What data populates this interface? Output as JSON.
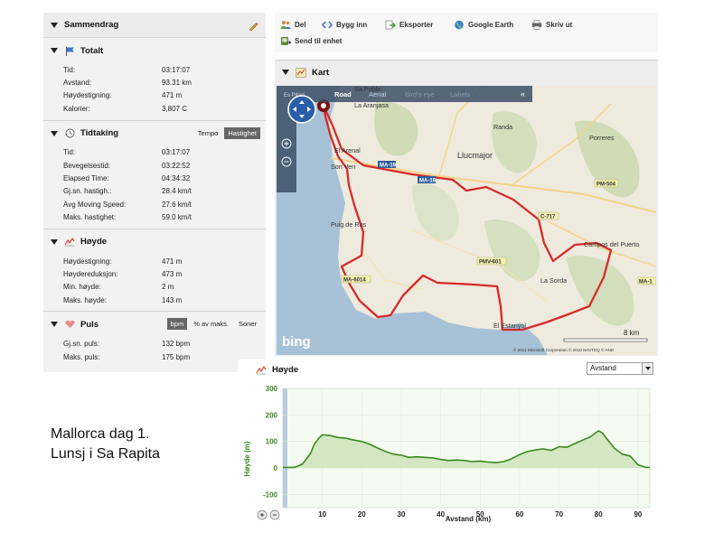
{
  "summary": {
    "title": "Sammendrag",
    "totalt": {
      "title": "Totalt",
      "rows": [
        {
          "label": "Tid:",
          "value": "03:17:07"
        },
        {
          "label": "Avstand:",
          "value": "93.31 km"
        },
        {
          "label": "Høydestigning:",
          "value": "471 m"
        },
        {
          "label": "Kalorier:",
          "value": "3,807 C"
        }
      ]
    },
    "tidtaking": {
      "title": "Tidtaking",
      "tabs": [
        "Tempo",
        "Hastighet"
      ],
      "active_tab": "Hastighet",
      "rows": [
        {
          "label": "Tid:",
          "value": "03:17:07"
        },
        {
          "label": "Bevegelsestid:",
          "value": "03:22:52"
        },
        {
          "label": "Elapsed Time:",
          "value": "04:34:32"
        },
        {
          "label": "Gj.sn. hastigh.:",
          "value": "28.4 km/t"
        },
        {
          "label": "Avg Moving Speed:",
          "value": "27.6 km/t"
        },
        {
          "label": "Maks. hastighet:",
          "value": "59.0 km/t"
        }
      ]
    },
    "hoyde": {
      "title": "Høyde",
      "rows": [
        {
          "label": "Høydestigning:",
          "value": "471 m"
        },
        {
          "label": "Høydereduksjon:",
          "value": "473 m"
        },
        {
          "label": "Min. høyde:",
          "value": "2 m"
        },
        {
          "label": "Maks. høyde:",
          "value": "143 m"
        }
      ]
    },
    "puls": {
      "title": "Puls",
      "tabs": [
        "bpm",
        "% av maks.",
        "Soner"
      ],
      "active_tab": "bpm",
      "rows": [
        {
          "label": "Gj.sn. puls:",
          "value": "132 bpm"
        },
        {
          "label": "Maks. puls:",
          "value": "175 bpm"
        }
      ]
    }
  },
  "toolbar": {
    "del": "Del",
    "bygg_inn": "Bygg inn",
    "eksporter": "Eksporter",
    "google_earth": "Google Earth",
    "skriv_ut": "Skriv ut",
    "send_til_enhet": "Send til enhet"
  },
  "map": {
    "title": "Kart",
    "modes": [
      "Road",
      "Aerial",
      "Bird's eye",
      "Labels"
    ],
    "active_mode": "Road",
    "collapse": "«",
    "places": [
      "Sa Pobla",
      "La Aranjasa",
      "Randa",
      "Porreres",
      "El Arenal",
      "Son Veri",
      "Llucmajor",
      "Puig de Ros",
      "Campos del Puerto",
      "La Sorda",
      "El Estanyol",
      "Es Pillari"
    ],
    "roads": [
      "MA-19",
      "MA-19",
      "PM-504",
      "C-717",
      "PMV-601",
      "MA-6014",
      "MA-1"
    ],
    "scale": "8 km",
    "logo": "bing",
    "copyright": "© 2011 Microsoft Corporation   © 2010 NAVTEQ   © AND"
  },
  "elevation": {
    "title": "Høyde",
    "axis_select": "Avstand",
    "chart_data": {
      "type": "area",
      "xlabel": "Avstand (km)",
      "ylabel": "Høyde (m)",
      "xlim": [
        0,
        93
      ],
      "ylim": [
        -150,
        300
      ],
      "xticks": [
        10,
        20,
        30,
        40,
        50,
        60,
        70,
        80,
        90
      ],
      "yticks": [
        300,
        200,
        100,
        0,
        -100
      ],
      "color": "#3a8a1e",
      "fill": "#cfe6bd",
      "x": [
        0,
        3,
        5,
        7,
        8,
        9,
        10,
        12,
        14,
        16,
        18,
        20,
        22,
        24,
        26,
        28,
        30,
        32,
        34,
        36,
        38,
        40,
        42,
        44,
        46,
        48,
        50,
        52,
        54,
        56,
        58,
        60,
        62,
        64,
        66,
        68,
        70,
        72,
        74,
        76,
        78,
        80,
        81,
        82,
        84,
        86,
        88,
        90,
        92,
        93
      ],
      "y": [
        2,
        2,
        15,
        55,
        90,
        110,
        125,
        122,
        115,
        112,
        105,
        100,
        90,
        75,
        62,
        52,
        48,
        40,
        42,
        40,
        38,
        32,
        28,
        30,
        28,
        24,
        26,
        22,
        20,
        24,
        35,
        50,
        62,
        68,
        72,
        66,
        80,
        78,
        92,
        105,
        118,
        140,
        132,
        112,
        75,
        52,
        45,
        12,
        2,
        2
      ]
    }
  },
  "caption": {
    "line1": "Mallorca dag 1.",
    "line2": "Lunsj i Sa Rapita"
  }
}
